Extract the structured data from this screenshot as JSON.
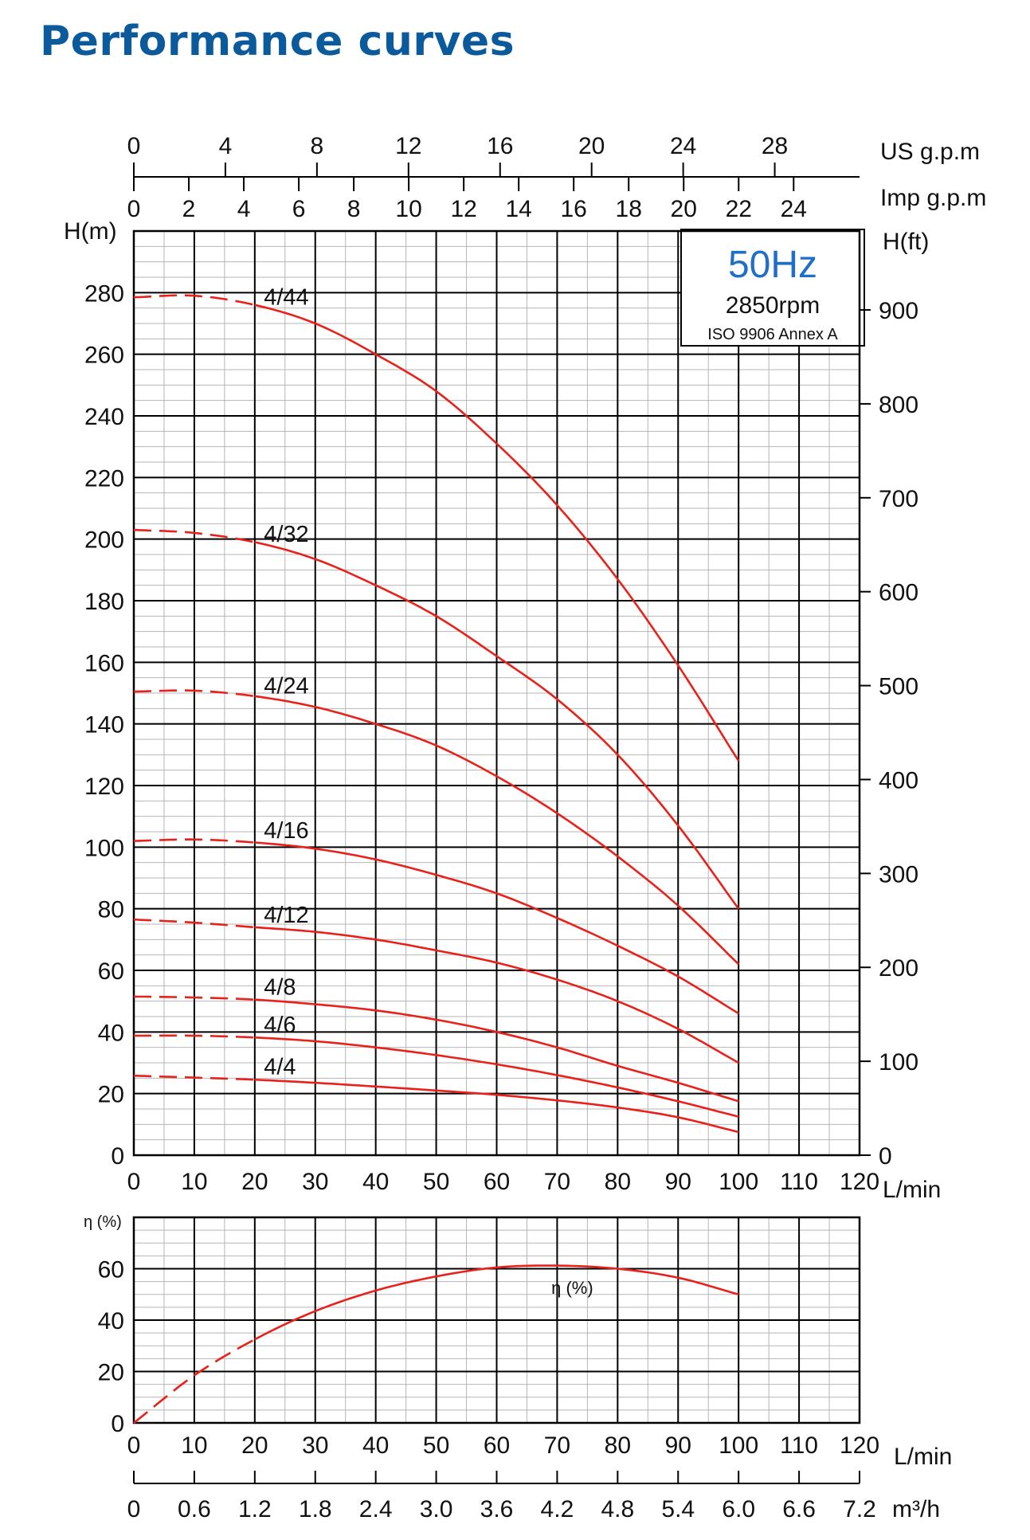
{
  "page_title": "Performance curves",
  "colors": {
    "title": "#0a5a9c",
    "curve": "#e8221b",
    "freq": "#1f6fc9",
    "grid": "#000000",
    "minor_grid": "#b5b5b5"
  },
  "chart_data": [
    {
      "type": "line",
      "title": "",
      "xlabel": "L/min",
      "ylabel": "H(m)",
      "y2label": "H(ft)",
      "xlim": [
        0,
        120
      ],
      "ylim": [
        0,
        300
      ],
      "y2lim_ft": [
        0,
        984
      ],
      "x_ticks": [
        0,
        10,
        20,
        30,
        40,
        50,
        60,
        70,
        80,
        90,
        100,
        110,
        120
      ],
      "y_ticks": [
        0,
        20,
        40,
        60,
        80,
        100,
        120,
        140,
        160,
        180,
        200,
        220,
        240,
        260,
        280
      ],
      "y2_ticks": [
        0,
        100,
        200,
        300,
        400,
        500,
        600,
        700,
        800,
        900
      ],
      "top_axes": [
        {
          "label": "US g.p.m",
          "ticks": [
            0,
            4,
            8,
            12,
            16,
            20,
            24,
            28
          ],
          "lmin_per_unit": 3.785
        },
        {
          "label": "Imp g.p.m",
          "ticks": [
            0,
            2,
            4,
            6,
            8,
            10,
            12,
            14,
            16,
            18,
            20,
            22,
            24
          ],
          "lmin_per_unit": 4.546
        }
      ],
      "info_box": {
        "frequency": "50Hz",
        "speed": "2850rpm",
        "standard": "ISO 9906 Annex A"
      },
      "grid": true,
      "x": [
        0,
        10,
        20,
        30,
        40,
        50,
        60,
        70,
        80,
        90,
        100
      ],
      "series": [
        {
          "name": "4/44",
          "dashed_until": 20,
          "values": [
            278.5,
            279,
            276,
            270,
            260,
            248,
            231,
            211,
            187,
            159,
            128
          ]
        },
        {
          "name": "4/32",
          "dashed_until": 20,
          "values": [
            203,
            202,
            199,
            193.5,
            185,
            175,
            162,
            148,
            130,
            107,
            80
          ]
        },
        {
          "name": "4/24",
          "dashed_until": 20,
          "values": [
            150.5,
            150.8,
            149,
            145.5,
            140,
            133,
            123,
            111,
            97,
            81,
            62
          ]
        },
        {
          "name": "4/16",
          "dashed_until": 20,
          "values": [
            102,
            102.5,
            101.5,
            99.5,
            96,
            91,
            85,
            77,
            68,
            58,
            46
          ]
        },
        {
          "name": "4/12",
          "dashed_until": 20,
          "values": [
            76.5,
            75.5,
            74,
            72.5,
            70,
            66.5,
            62.5,
            57,
            50,
            41,
            30
          ]
        },
        {
          "name": "4/8",
          "dashed_until": 20,
          "values": [
            51.5,
            51.2,
            50.5,
            49,
            47,
            44,
            40,
            35,
            29,
            23.5,
            17.5
          ]
        },
        {
          "name": "4/6",
          "dashed_until": 20,
          "values": [
            38.8,
            38.8,
            38.2,
            37,
            35,
            32.5,
            29.5,
            26,
            22,
            17.5,
            12.5
          ]
        },
        {
          "name": "4/4",
          "dashed_until": 20,
          "values": [
            25.8,
            25.2,
            24.5,
            23.5,
            22.3,
            21,
            19.6,
            17.8,
            15.5,
            12.3,
            7.5
          ]
        }
      ]
    },
    {
      "type": "line",
      "title": "",
      "xlabel": "L/min",
      "x2label": "m³/h",
      "ylabel": "η (%)",
      "xlim": [
        0,
        120
      ],
      "ylim": [
        0,
        80
      ],
      "x_ticks": [
        0,
        10,
        20,
        30,
        40,
        50,
        60,
        70,
        80,
        90,
        100,
        110,
        120
      ],
      "x2_ticks": [
        "0",
        "0.6",
        "1.2",
        "1.8",
        "2.4",
        "3.0",
        "3.6",
        "4.2",
        "4.8",
        "5.4",
        "6.0",
        "6.6",
        "7.2"
      ],
      "y_ticks": [
        0,
        20,
        40,
        60
      ],
      "grid": true,
      "x": [
        0,
        10,
        20,
        30,
        40,
        50,
        60,
        70,
        80,
        90,
        100
      ],
      "series": [
        {
          "name": "η (%)",
          "dashed_until": 20,
          "values": [
            0,
            18.5,
            32.5,
            43.5,
            51.5,
            57,
            60.5,
            61.2,
            60,
            56.5,
            50
          ]
        }
      ]
    }
  ]
}
